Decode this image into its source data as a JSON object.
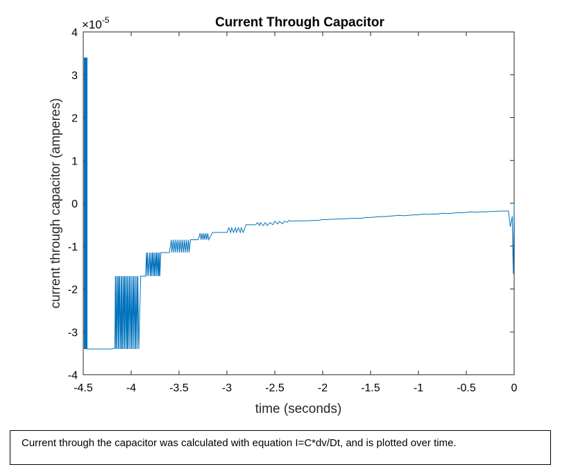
{
  "chart_data": {
    "type": "line",
    "title": "Current Through Capacitor",
    "xlabel": "time (seconds)",
    "ylabel": "current through capacitor (amperes)",
    "exponent_label": "×10",
    "exponent_power": "-5",
    "xlim": [
      -4.5,
      0
    ],
    "ylim": [
      -4,
      4
    ],
    "y_scale_factor": 1e-05,
    "x_ticks": [
      -4.5,
      -4,
      -3.5,
      -3,
      -2.5,
      -2,
      -1.5,
      -1,
      -0.5,
      0
    ],
    "x_tick_labels": [
      "-4.5",
      "-4",
      "-3.5",
      "-3",
      "-2.5",
      "-2",
      "-1.5",
      "-1",
      "-0.5",
      "0"
    ],
    "y_ticks": [
      -4,
      -3,
      -2,
      -1,
      0,
      1,
      2,
      3,
      4
    ],
    "y_tick_labels": [
      "-4",
      "-3",
      "-2",
      "-1",
      "0",
      "1",
      "2",
      "3",
      "4"
    ],
    "grid": false,
    "series": [
      {
        "color": "#0072BD",
        "x": [
          -4.49,
          -4.49,
          -4.485,
          -4.485,
          -4.48,
          -4.48,
          -4.475,
          -4.475,
          -4.47,
          -4.47,
          -4.465,
          -4.465,
          -4.46,
          -4.46,
          -4.46,
          -4.4,
          -4.3,
          -4.2,
          -4.17,
          -4.165,
          -4.16,
          -4.155,
          -4.15,
          -4.14,
          -4.135,
          -4.13,
          -4.125,
          -4.12,
          -4.11,
          -4.105,
          -4.1,
          -4.095,
          -4.09,
          -4.08,
          -4.075,
          -4.07,
          -4.065,
          -4.06,
          -4.05,
          -4.045,
          -4.04,
          -4.035,
          -4.03,
          -4.02,
          -4.015,
          -4.01,
          -4.0,
          -3.995,
          -3.99,
          -3.98,
          -3.975,
          -3.97,
          -3.96,
          -3.955,
          -3.95,
          -3.94,
          -3.935,
          -3.93,
          -3.92,
          -3.9,
          -3.85,
          -3.84,
          -3.835,
          -3.83,
          -3.82,
          -3.81,
          -3.8,
          -3.795,
          -3.79,
          -3.78,
          -3.775,
          -3.77,
          -3.76,
          -3.755,
          -3.75,
          -3.74,
          -3.735,
          -3.73,
          -3.72,
          -3.715,
          -3.71,
          -3.705,
          -3.7,
          -3.69,
          -3.66,
          -3.6,
          -3.58,
          -3.575,
          -3.56,
          -3.555,
          -3.54,
          -3.535,
          -3.52,
          -3.515,
          -3.5,
          -3.495,
          -3.48,
          -3.475,
          -3.46,
          -3.455,
          -3.44,
          -3.435,
          -3.42,
          -3.415,
          -3.4,
          -3.395,
          -3.38,
          -3.35,
          -3.3,
          -3.28,
          -3.27,
          -3.26,
          -3.25,
          -3.24,
          -3.23,
          -3.22,
          -3.21,
          -3.2,
          -3.19,
          -3.15,
          -3.0,
          -2.98,
          -2.96,
          -2.95,
          -2.93,
          -2.91,
          -2.9,
          -2.88,
          -2.86,
          -2.85,
          -2.83,
          -2.8,
          -2.7,
          -2.68,
          -2.66,
          -2.65,
          -2.62,
          -2.6,
          -2.58,
          -2.55,
          -2.52,
          -2.5,
          -2.47,
          -2.45,
          -2.42,
          -2.4,
          -2.37,
          -2.35,
          -2.32,
          -2.3,
          -2.2,
          -2.1,
          -2.05,
          -2.0,
          -1.95,
          -1.9,
          -1.85,
          -1.8,
          -1.75,
          -1.7,
          -1.65,
          -1.6,
          -1.55,
          -1.5,
          -1.45,
          -1.4,
          -1.35,
          -1.3,
          -1.25,
          -1.2,
          -1.15,
          -1.1,
          -1.05,
          -1.0,
          -0.95,
          -0.9,
          -0.85,
          -0.8,
          -0.75,
          -0.7,
          -0.65,
          -0.6,
          -0.55,
          -0.5,
          -0.45,
          -0.4,
          -0.35,
          -0.3,
          -0.25,
          -0.2,
          -0.15,
          -0.1,
          -0.06,
          -0.04,
          -0.02,
          -0.01,
          0.0
        ],
        "y": [
          -3.4,
          3.4,
          -3.4,
          3.4,
          -3.4,
          3.4,
          -3.4,
          3.4,
          -3.4,
          3.4,
          -3.4,
          3.4,
          -3.4,
          3.4,
          -3.4,
          -3.4,
          -3.4,
          -3.4,
          -3.38,
          -1.7,
          -3.4,
          -1.7,
          -3.4,
          -1.7,
          -3.4,
          -1.7,
          -3.4,
          -1.7,
          -3.4,
          -1.7,
          -3.4,
          -1.7,
          -3.4,
          -1.7,
          -3.4,
          -1.7,
          -3.4,
          -1.7,
          -3.4,
          -1.7,
          -3.4,
          -1.7,
          -3.4,
          -1.7,
          -3.4,
          -1.7,
          -3.4,
          -1.7,
          -3.4,
          -1.7,
          -3.4,
          -1.7,
          -3.4,
          -1.7,
          -3.4,
          -1.7,
          -3.4,
          -1.7,
          -3.4,
          -1.7,
          -1.7,
          -1.15,
          -1.7,
          -1.15,
          -1.7,
          -1.15,
          -1.7,
          -1.15,
          -1.7,
          -1.15,
          -1.7,
          -1.15,
          -1.7,
          -1.15,
          -1.7,
          -1.15,
          -1.7,
          -1.15,
          -1.7,
          -1.15,
          -1.7,
          -1.15,
          -1.7,
          -1.15,
          -1.15,
          -1.15,
          -0.85,
          -1.15,
          -0.85,
          -1.15,
          -0.85,
          -1.15,
          -0.85,
          -1.15,
          -0.85,
          -1.15,
          -0.85,
          -1.15,
          -0.85,
          -1.15,
          -0.85,
          -1.15,
          -0.85,
          -1.15,
          -0.85,
          -1.15,
          -0.85,
          -0.85,
          -0.85,
          -0.7,
          -0.85,
          -0.7,
          -0.85,
          -0.7,
          -0.85,
          -0.7,
          -0.85,
          -0.7,
          -0.85,
          -0.68,
          -0.68,
          -0.57,
          -0.68,
          -0.57,
          -0.68,
          -0.57,
          -0.68,
          -0.57,
          -0.68,
          -0.57,
          -0.68,
          -0.5,
          -0.5,
          -0.45,
          -0.52,
          -0.45,
          -0.52,
          -0.45,
          -0.52,
          -0.45,
          -0.5,
          -0.42,
          -0.48,
          -0.42,
          -0.48,
          -0.42,
          -0.44,
          -0.4,
          -0.42,
          -0.41,
          -0.41,
          -0.4,
          -0.4,
          -0.38,
          -0.38,
          -0.37,
          -0.37,
          -0.36,
          -0.36,
          -0.35,
          -0.35,
          -0.35,
          -0.33,
          -0.33,
          -0.32,
          -0.31,
          -0.31,
          -0.3,
          -0.29,
          -0.28,
          -0.29,
          -0.28,
          -0.27,
          -0.27,
          -0.25,
          -0.26,
          -0.25,
          -0.25,
          -0.23,
          -0.24,
          -0.23,
          -0.22,
          -0.22,
          -0.21,
          -0.2,
          -0.21,
          -0.2,
          -0.2,
          -0.19,
          -0.19,
          -0.18,
          -0.18,
          -0.18,
          -0.55,
          -0.3,
          -1.65,
          0.0
        ]
      }
    ]
  },
  "caption": "Current through the capacitor was calculated with equation I=C*dv/Dt, and is plotted over time."
}
